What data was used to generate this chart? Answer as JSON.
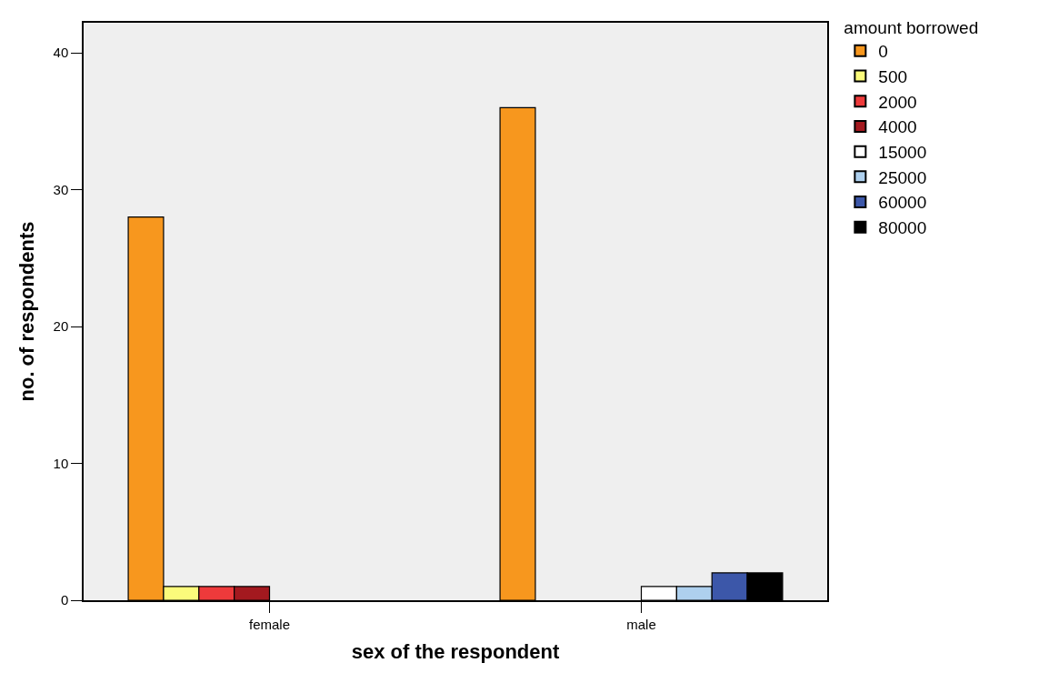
{
  "chart_data": {
    "type": "bar",
    "xlabel": "sex of the respondent",
    "ylabel": "no. of respondents",
    "legend_title": "amount borrowed",
    "categories": [
      "female",
      "male"
    ],
    "series": [
      {
        "name": "0",
        "color": "#f7971e",
        "values": [
          28,
          36
        ]
      },
      {
        "name": "500",
        "color": "#fbfb7b",
        "values": [
          1,
          null
        ]
      },
      {
        "name": "2000",
        "color": "#ee3a3b",
        "values": [
          1,
          null
        ]
      },
      {
        "name": "4000",
        "color": "#a3191f",
        "values": [
          1,
          null
        ]
      },
      {
        "name": "15000",
        "color": "#ffffff",
        "values": [
          null,
          1
        ]
      },
      {
        "name": "25000",
        "color": "#aed0ee",
        "values": [
          null,
          1
        ]
      },
      {
        "name": "60000",
        "color": "#3c57a9",
        "values": [
          null,
          2
        ]
      },
      {
        "name": "80000",
        "color": "#000000",
        "values": [
          null,
          2
        ]
      }
    ],
    "ylim": [
      0,
      42.2
    ],
    "yticks": [
      0,
      10,
      20,
      30,
      40
    ],
    "grid": false,
    "legend": "top right"
  }
}
